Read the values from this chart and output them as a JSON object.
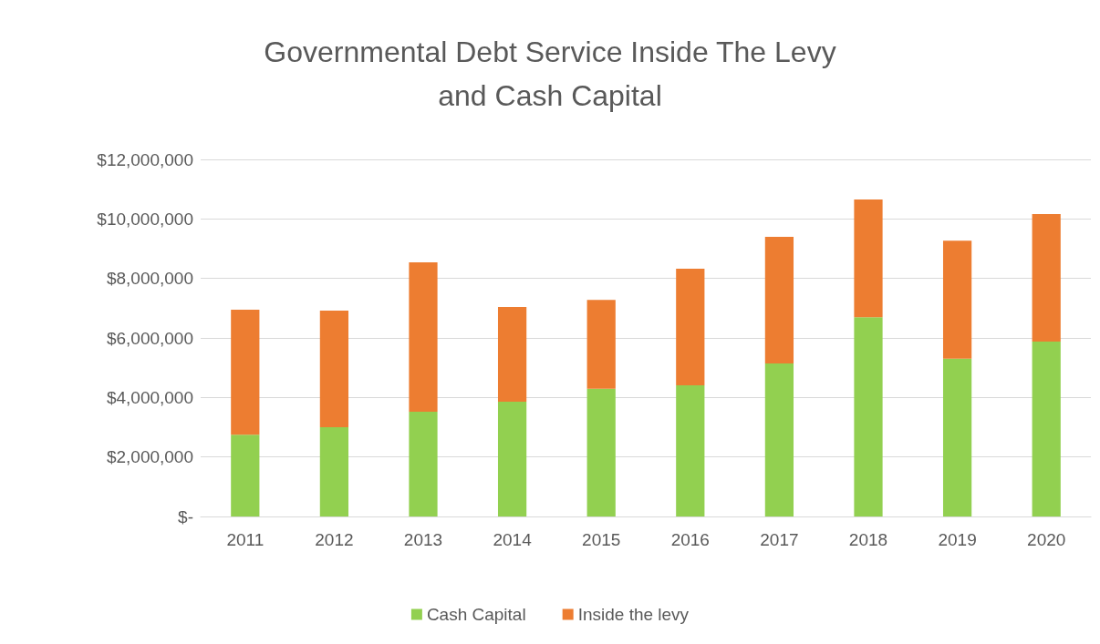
{
  "chart_data": {
    "type": "bar",
    "title": "Governmental Debt Service Inside The Levy\nand Cash Capital",
    "categories": [
      "2011",
      "2012",
      "2013",
      "2014",
      "2015",
      "2016",
      "2017",
      "2018",
      "2019",
      "2020"
    ],
    "stacked": true,
    "series": [
      {
        "name": "Cash Capital",
        "color": "#92d050",
        "values": [
          2750000,
          3000000,
          3520000,
          3860000,
          4290000,
          4410000,
          5140000,
          6700000,
          5300000,
          5880000
        ]
      },
      {
        "name": "Inside the levy",
        "color": "#ed7d31",
        "values": [
          4200000,
          3920000,
          5020000,
          3180000,
          2990000,
          3920000,
          4260000,
          3950000,
          3970000,
          4280000
        ]
      }
    ],
    "ylim": [
      0,
      12000000
    ],
    "yticks": [
      {
        "value": 0,
        "label": "$-"
      },
      {
        "value": 2000000,
        "label": "$2,000,000"
      },
      {
        "value": 4000000,
        "label": "$4,000,000"
      },
      {
        "value": 6000000,
        "label": "$6,000,000"
      },
      {
        "value": 8000000,
        "label": "$8,000,000"
      },
      {
        "value": 10000000,
        "label": "$10,000,000"
      },
      {
        "value": 12000000,
        "label": "$12,000,000"
      }
    ],
    "grid": "y",
    "legend": "bottom"
  }
}
